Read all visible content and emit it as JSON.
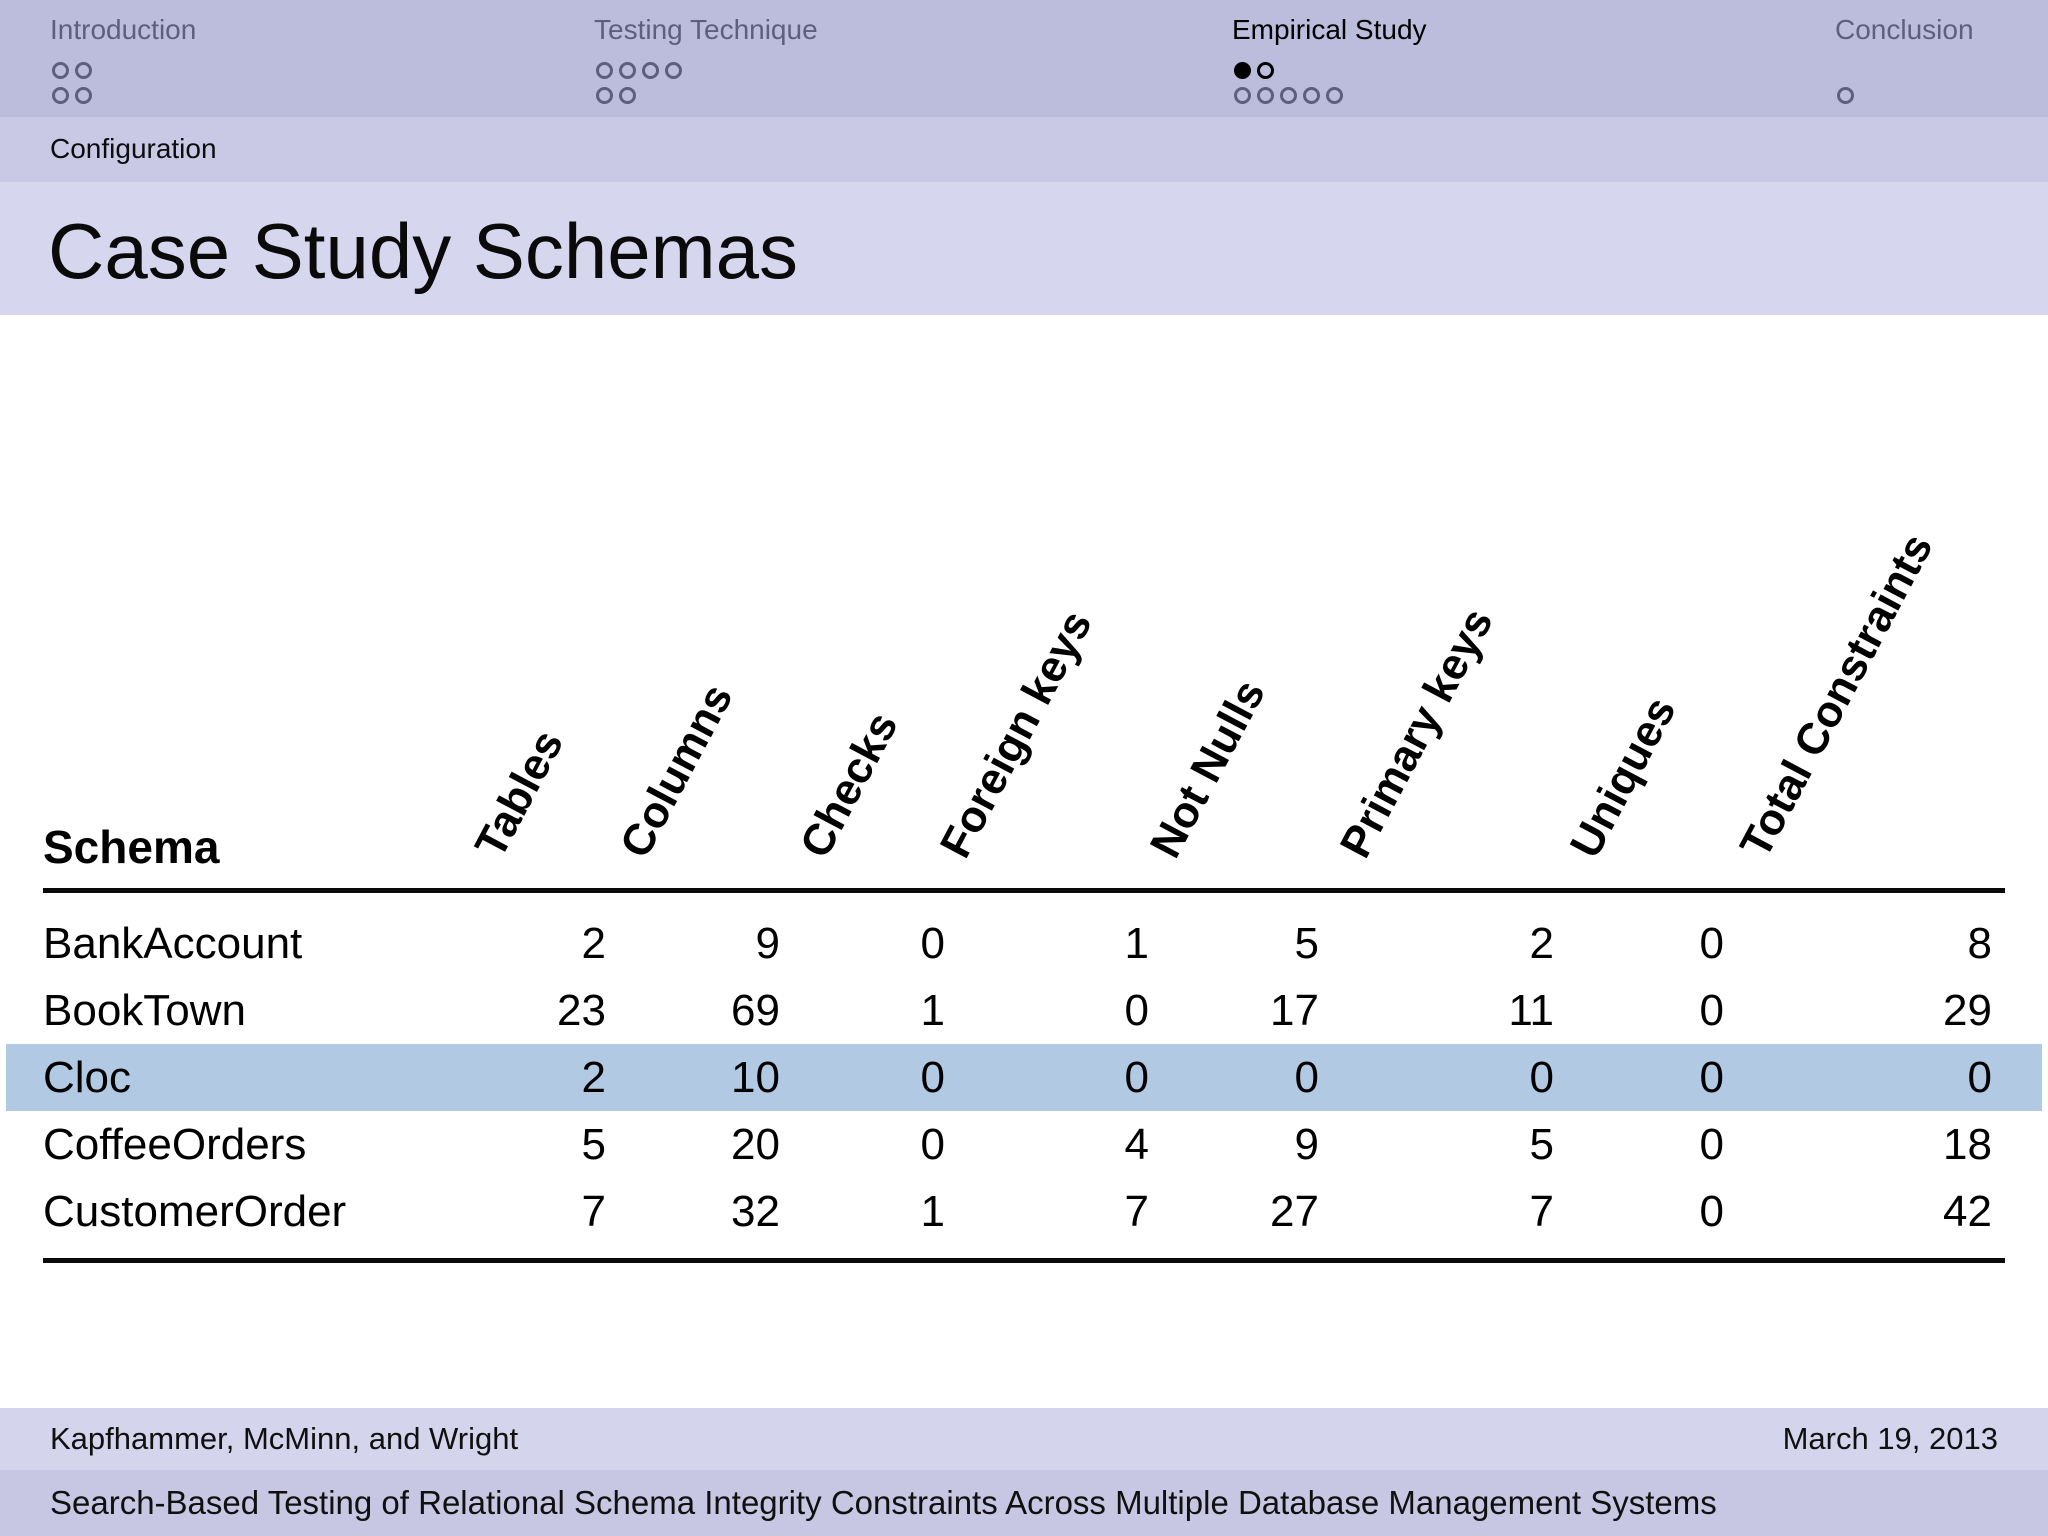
{
  "nav": {
    "sections": [
      {
        "label": "Introduction",
        "color": "#5e5e7e",
        "dot_rows": [
          "oo",
          "oo"
        ]
      },
      {
        "label": "Testing Technique",
        "color": "#5e5e7e",
        "dot_rows": [
          "oooo",
          "oo"
        ]
      },
      {
        "label": "Empirical Study",
        "color": "#000000",
        "dot_rows": [
          "FO",
          "ooooo"
        ]
      },
      {
        "label": "Conclusion",
        "color": "#5e5e7e",
        "dot_rows": [
          "",
          "o"
        ]
      }
    ],
    "subsection": "Configuration"
  },
  "slide": {
    "title": "Case Study Schemas"
  },
  "table": {
    "row_header": "Schema",
    "columns": [
      "Tables",
      "Columns",
      "Checks",
      "Foreign keys",
      "Not Nulls",
      "Primary keys",
      "Uniques",
      "Total Constraints"
    ],
    "rows": [
      {
        "cells": [
          "BankAccount",
          "2",
          "9",
          "0",
          "1",
          "5",
          "2",
          "0",
          "8"
        ],
        "highlighted": false
      },
      {
        "cells": [
          "BookTown",
          "23",
          "69",
          "1",
          "0",
          "17",
          "11",
          "0",
          "29"
        ],
        "highlighted": false
      },
      {
        "cells": [
          "Cloc",
          "2",
          "10",
          "0",
          "0",
          "0",
          "0",
          "0",
          "0"
        ],
        "highlighted": true
      },
      {
        "cells": [
          "CoffeeOrders",
          "5",
          "20",
          "0",
          "4",
          "9",
          "5",
          "0",
          "18"
        ],
        "highlighted": false
      },
      {
        "cells": [
          "CustomerOrder",
          "7",
          "32",
          "1",
          "7",
          "27",
          "7",
          "0",
          "42"
        ],
        "highlighted": false
      }
    ],
    "highlighted_row": "Cloc",
    "highlight_color": "#b1c9e2"
  },
  "footer": {
    "authors": "Kapfhammer, McMinn, and Wright",
    "date": "March 19, 2013",
    "talk_title": "Search-Based Testing of Relational Schema Integrity Constraints Across Multiple  Database Management Systems"
  },
  "colors": {
    "headline_bg": "#bcbcdc",
    "subsection_bg": "#c9c9e6",
    "titlebar_bg": "#d6d6ee",
    "footer_author_bg": "#d4d4ec",
    "footer_title_bg": "#c7c7e4",
    "dim_text": "#5e5e7e"
  }
}
